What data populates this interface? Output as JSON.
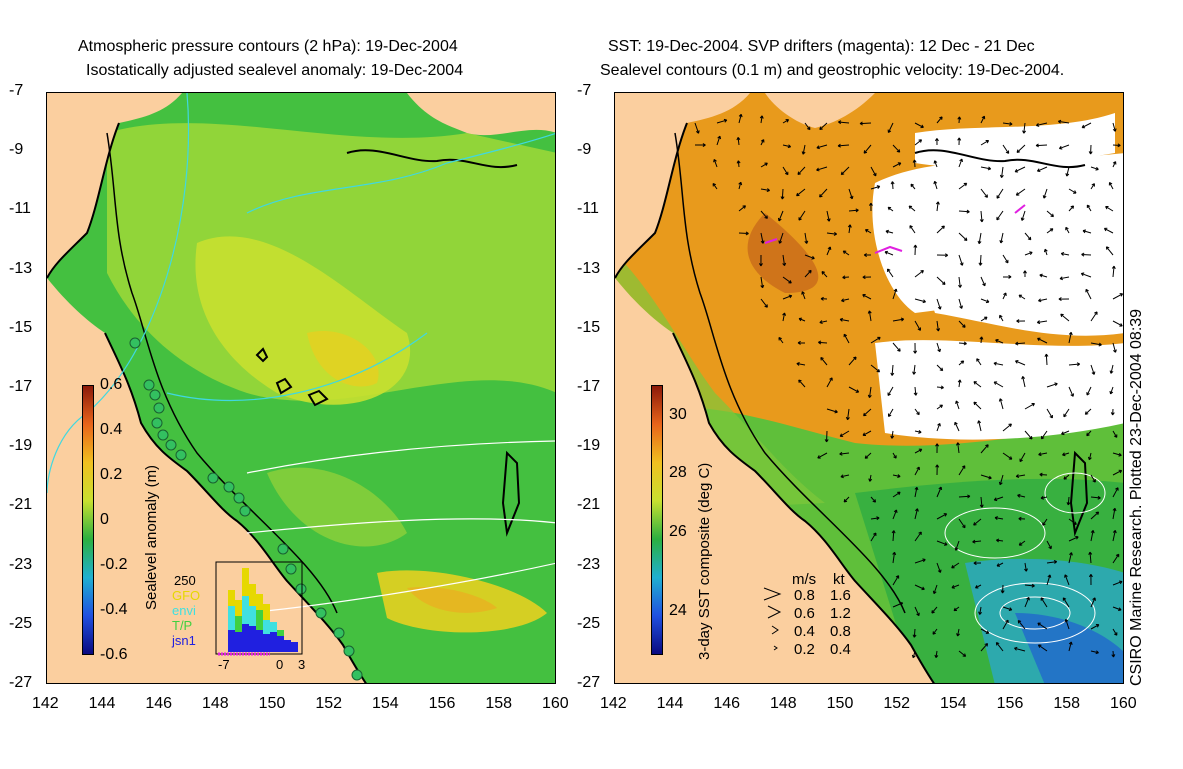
{
  "left_panel": {
    "title_line1": "Atmospheric pressure contours (2 hPa): 19-Dec-2004",
    "title_line2": "Isostatically adjusted sealevel anomaly: 19-Dec-2004",
    "colorbar": {
      "label": "Sealevel anomaly (m)",
      "ticks": [
        "0.6",
        "0.4",
        "0.2",
        "0",
        "-0.2",
        "-0.4",
        "-0.6"
      ],
      "colors": [
        "#8b1a0a",
        "#e8641a",
        "#f0c020",
        "#c8e030",
        "#2cb040",
        "#20b0d0",
        "#2050e0",
        "#0a0a80"
      ]
    },
    "inset": {
      "ymax_label": "250",
      "legend": [
        {
          "name": "GFO",
          "color": "#e6d800"
        },
        {
          "name": "envi",
          "color": "#40e0e0"
        },
        {
          "name": "T/P",
          "color": "#40d040"
        },
        {
          "name": "jsn1",
          "color": "#2020e0"
        }
      ],
      "xticks": [
        "-7",
        "0",
        "3"
      ]
    }
  },
  "right_panel": {
    "title_line1": "SST: 19-Dec-2004. SVP drifters (magenta): 12 Dec - 21 Dec",
    "title_line2": "Sealevel contours (0.1 m) and geostrophic velocity: 19-Dec-2004.",
    "colorbar": {
      "label": "3-day SST composite (deg C)",
      "ticks": [
        "30",
        "28",
        "26",
        "24"
      ],
      "colors": [
        "#8b1a0a",
        "#e8641a",
        "#f0c020",
        "#c8e030",
        "#2cb040",
        "#20b0d0",
        "#2050e0",
        "#0a0a80"
      ]
    },
    "velocity_key": {
      "unit_ms": "m/s",
      "unit_kt": "kt",
      "rows": [
        {
          "ms": "0.8",
          "kt": "1.6"
        },
        {
          "ms": "0.6",
          "kt": "1.2"
        },
        {
          "ms": "0.4",
          "kt": "0.8"
        },
        {
          "ms": "0.2",
          "kt": "0.4"
        }
      ]
    }
  },
  "axes": {
    "y_ticks": [
      "-7",
      "-9",
      "-11",
      "-13",
      "-15",
      "-17",
      "-19",
      "-21",
      "-23",
      "-25",
      "-27"
    ],
    "x_ticks": [
      "142",
      "144",
      "146",
      "148",
      "150",
      "152",
      "154",
      "156",
      "158",
      "160"
    ]
  },
  "credit": "CSIRO Marine Research. Plotted 23-Dec-2004 08:39",
  "colors": {
    "land": "#fbcf9f",
    "ocean_green": "#44c040",
    "warm_sst": "#f0a020",
    "cloud": "#ffffff"
  }
}
